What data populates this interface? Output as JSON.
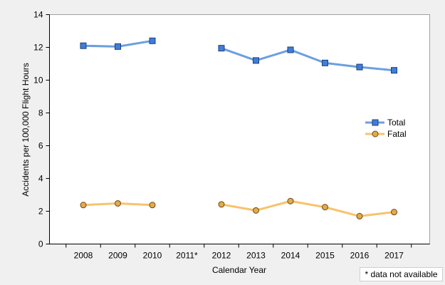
{
  "chart_data": {
    "type": "line",
    "categories": [
      "2008",
      "2009",
      "2010",
      "2011*",
      "2012",
      "2013",
      "2014",
      "2015",
      "2016",
      "2017"
    ],
    "series": [
      {
        "name": "Total",
        "values": [
          12.1,
          12.05,
          12.4,
          null,
          11.95,
          11.2,
          11.85,
          11.05,
          10.8,
          10.6
        ],
        "color": "#6c9fe0",
        "marker": "square",
        "marker_color": "#3f7ddc"
      },
      {
        "name": "Fatal",
        "values": [
          2.38,
          2.48,
          2.38,
          null,
          2.42,
          2.05,
          2.62,
          2.25,
          1.7,
          1.95
        ],
        "color": "#f8c36b",
        "marker": "circle",
        "marker_color": "#e3a94c"
      }
    ],
    "xlabel": "Calendar Year",
    "ylabel": "Accidents per 100,000 Flight Hours",
    "ylim": [
      0,
      14
    ],
    "yticks": [
      0,
      2,
      4,
      6,
      8,
      10,
      12,
      14
    ],
    "grid": false,
    "legend_position": "right"
  },
  "footnote": "* data not available"
}
